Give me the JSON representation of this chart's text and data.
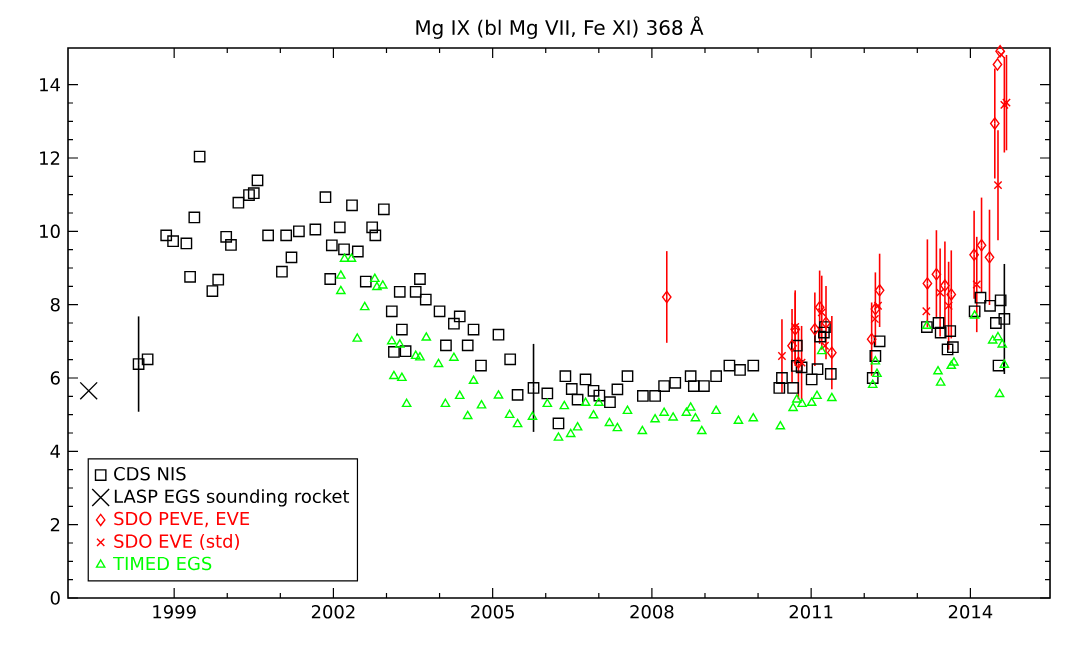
{
  "chart_data": {
    "type": "scatter",
    "title": "Mg IX (bl Mg VII, Fe XI) 368 Å",
    "xlim": [
      1997,
      2015.5
    ],
    "ylim": [
      0,
      15
    ],
    "xticks": [
      1999,
      2002,
      2005,
      2008,
      2011,
      2014
    ],
    "yticks": [
      0,
      2,
      4,
      6,
      8,
      10,
      12,
      14
    ],
    "legend": "bottom left",
    "series": [
      {
        "name": "CDS NIS",
        "color": "#000000",
        "marker": "square",
        "x": [
          1998.33,
          1998.5,
          1998.85,
          1998.98,
          1999.23,
          1999.3,
          1999.38,
          1999.48,
          1999.72,
          1999.83,
          1999.98,
          2000.07,
          2000.21,
          2000.41,
          2000.5,
          2000.57,
          2000.77,
          2001.03,
          2001.11,
          2001.21,
          2001.35,
          2001.66,
          2001.85,
          2001.94,
          2001.97,
          2002.12,
          2002.2,
          2002.35,
          2002.46,
          2002.61,
          2002.73,
          2002.79,
          2002.95,
          2003.1,
          2003.14,
          2003.25,
          2003.29,
          2003.36,
          2003.55,
          2003.63,
          2003.74,
          2004.0,
          2004.12,
          2004.27,
          2004.38,
          2004.53,
          2004.64,
          2004.78,
          2005.11,
          2005.33,
          2005.47,
          2005.77,
          2006.03,
          2006.24,
          2006.37,
          2006.49,
          2006.6,
          2006.75,
          2006.9,
          2007.01,
          2007.21,
          2007.35,
          2007.54,
          2007.83,
          2008.06,
          2008.23,
          2008.44,
          2008.73,
          2008.79,
          2008.98,
          2009.21,
          2009.46,
          2009.66,
          2009.91,
          2010.4,
          2010.45,
          2010.66,
          2010.73,
          2010.73,
          2010.82,
          2011.01,
          2011.12,
          2011.17,
          2011.24,
          2011.26,
          2011.37,
          2012.16,
          2012.21,
          2012.29,
          2013.18,
          2013.4,
          2013.44,
          2013.57,
          2013.62,
          2013.67,
          2014.08,
          2014.19,
          2014.37,
          2014.48,
          2014.53,
          2014.57,
          2014.64
        ],
        "values": [
          6.38,
          6.51,
          9.89,
          9.73,
          9.67,
          8.76,
          10.38,
          12.04,
          8.37,
          8.68,
          9.85,
          9.63,
          10.78,
          10.99,
          11.04,
          11.39,
          9.89,
          8.9,
          9.89,
          9.29,
          10.0,
          10.05,
          10.93,
          8.7,
          9.62,
          10.11,
          9.51,
          10.71,
          9.45,
          8.63,
          10.11,
          9.89,
          10.6,
          7.82,
          6.71,
          8.35,
          7.32,
          6.73,
          8.35,
          8.7,
          8.14,
          7.82,
          6.89,
          7.48,
          7.68,
          6.89,
          7.32,
          6.34,
          7.18,
          6.51,
          5.54,
          5.73,
          5.58,
          4.76,
          6.05,
          5.7,
          5.41,
          5.96,
          5.65,
          5.52,
          5.34,
          5.69,
          6.05,
          5.51,
          5.51,
          5.78,
          5.87,
          6.05,
          5.78,
          5.78,
          6.05,
          6.34,
          6.22,
          6.34,
          5.73,
          6.0,
          5.73,
          6.88,
          6.33,
          6.29,
          5.96,
          6.24,
          7.13,
          7.24,
          7.39,
          6.11,
          6.0,
          6.6,
          7.0,
          7.39,
          7.5,
          7.24,
          6.78,
          7.28,
          6.84,
          7.82,
          8.19,
          7.97,
          7.5,
          6.34,
          8.12,
          7.61
        ],
        "errors": [
          1.3,
          null,
          null,
          null,
          null,
          null,
          null,
          null,
          null,
          null,
          null,
          null,
          null,
          null,
          null,
          null,
          null,
          null,
          null,
          null,
          null,
          null,
          null,
          null,
          null,
          null,
          null,
          null,
          null,
          null,
          null,
          null,
          null,
          null,
          null,
          null,
          null,
          null,
          null,
          null,
          null,
          null,
          null,
          null,
          null,
          null,
          null,
          null,
          null,
          null,
          null,
          1.2,
          null,
          null,
          null,
          null,
          null,
          null,
          null,
          null,
          null,
          null,
          null,
          null,
          null,
          null,
          null,
          null,
          null,
          null,
          null,
          null,
          null,
          null,
          null,
          null,
          null,
          null,
          null,
          null,
          null,
          null,
          null,
          null,
          null,
          null,
          null,
          null,
          null,
          null,
          null,
          null,
          null,
          null,
          null,
          null,
          null,
          null,
          null,
          null,
          null,
          1.5
        ]
      },
      {
        "name": "LASP EGS sounding rocket",
        "color": "#000000",
        "marker": "cross",
        "x": [
          1997.39
        ],
        "values": [
          5.65
        ]
      },
      {
        "name": "SDO PEVE, EVE",
        "color": "#ff0000",
        "marker": "diamond",
        "x": [
          2008.28,
          2010.64,
          2010.7,
          2010.76,
          2011.07,
          2011.16,
          2011.28,
          2011.39,
          2012.14,
          2012.21,
          2012.29,
          2013.19,
          2013.36,
          2013.52,
          2013.64,
          2014.07,
          2014.21,
          2014.36,
          2014.46,
          2014.51,
          2014.56
        ],
        "values": [
          8.21,
          6.88,
          7.33,
          6.42,
          7.33,
          7.93,
          7.51,
          6.69,
          7.06,
          7.88,
          8.39,
          8.58,
          8.83,
          8.52,
          8.28,
          9.36,
          9.62,
          9.29,
          12.94,
          14.55,
          14.91
        ],
        "errors": [
          1.25,
          1.0,
          1.0,
          1.0,
          1.0,
          1.0,
          1.0,
          1.0,
          1.0,
          1.0,
          1.0,
          1.2,
          1.2,
          1.2,
          1.2,
          1.2,
          1.3,
          1.3,
          1.5,
          null,
          null
        ]
      },
      {
        "name": "SDO EVE (std)",
        "color": "#ff0000",
        "marker": "cross",
        "x": [
          2010.45,
          2010.7,
          2010.82,
          2011.2,
          2011.26,
          2012.2,
          2012.26,
          2013.17,
          2013.43,
          2013.59,
          2014.12,
          2014.52,
          2014.58,
          2014.64,
          2014.68
        ],
        "values": [
          6.6,
          7.39,
          6.42,
          7.79,
          6.88,
          7.61,
          7.97,
          7.82,
          8.33,
          7.97,
          8.55,
          11.26,
          14.82,
          13.45,
          13.51
        ],
        "errors": [
          1.0,
          1.0,
          1.0,
          1.0,
          null,
          null,
          null,
          null,
          1.2,
          1.2,
          1.3,
          1.5,
          null,
          1.3,
          1.3
        ]
      },
      {
        "name": "TIMED EGS",
        "color": "#00ff00",
        "marker": "triangle",
        "x": [
          2002.14,
          2002.14,
          2002.21,
          2002.34,
          2002.45,
          2002.59,
          2002.78,
          2002.82,
          2002.93,
          2003.1,
          2003.14,
          2003.25,
          2003.29,
          2003.38,
          2003.55,
          2003.63,
          2003.75,
          2003.98,
          2004.11,
          2004.27,
          2004.38,
          2004.53,
          2004.64,
          2004.79,
          2005.11,
          2005.32,
          2005.47,
          2005.75,
          2006.03,
          2006.24,
          2006.35,
          2006.47,
          2006.6,
          2006.75,
          2006.9,
          2007.0,
          2007.2,
          2007.35,
          2007.54,
          2007.82,
          2008.06,
          2008.23,
          2008.4,
          2008.65,
          2008.73,
          2008.82,
          2008.94,
          2009.21,
          2009.63,
          2009.91,
          2010.42,
          2010.66,
          2010.73,
          2010.83,
          2011.01,
          2011.11,
          2011.2,
          2011.39,
          2012.16,
          2012.24,
          2012.21,
          2013.18,
          2013.39,
          2013.44,
          2013.64,
          2013.69,
          2014.08,
          2014.42,
          2014.52,
          2014.6,
          2014.64,
          2014.55
        ],
        "values": [
          8.79,
          8.37,
          9.25,
          9.25,
          7.07,
          7.93,
          8.7,
          8.48,
          8.52,
          7.0,
          6.05,
          6.91,
          6.0,
          5.29,
          6.6,
          6.56,
          7.1,
          6.38,
          5.29,
          6.55,
          5.51,
          4.96,
          5.92,
          5.25,
          5.52,
          4.99,
          4.74,
          4.94,
          5.29,
          4.37,
          5.23,
          4.47,
          4.65,
          5.32,
          4.98,
          5.32,
          4.77,
          4.63,
          5.1,
          4.55,
          4.87,
          5.05,
          4.92,
          5.05,
          5.19,
          4.9,
          4.55,
          5.1,
          4.83,
          4.9,
          4.68,
          5.18,
          5.41,
          5.29,
          5.32,
          5.51,
          6.73,
          5.45,
          5.81,
          6.11,
          6.45,
          7.42,
          6.18,
          5.87,
          6.33,
          6.42,
          7.7,
          7.02,
          7.11,
          6.91,
          6.36,
          5.56
        ]
      }
    ]
  }
}
